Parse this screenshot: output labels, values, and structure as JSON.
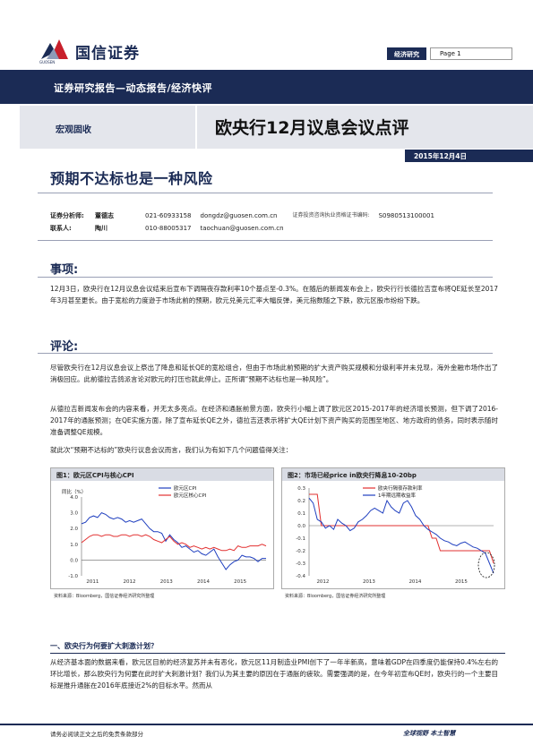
{
  "header": {
    "logo_name": "国信证券",
    "logo_sub": "GUOSEN",
    "category": "经济研究",
    "page": "Page 1",
    "banner": "证券研究报告—动态报告/经济快评",
    "section": "宏观固收",
    "report_title": "欧央行12月议息会议点评",
    "date": "2015年12月4日"
  },
  "main_title": "预期不达标也是一种风险",
  "authors": [
    {
      "role": "证券分析师:",
      "name": "董德志",
      "phone": "021-60933158",
      "email": "dongdz@guosen.com.cn",
      "license_label": "证券投资咨询执业资格证书编码:",
      "license": "S0980513100001"
    },
    {
      "role": "联系人:",
      "name": "陶川",
      "phone": "010-88005317",
      "email": "taochuan@guosen.com.cn",
      "license_label": "",
      "license": ""
    }
  ],
  "sections": {
    "events_heading": "事项:",
    "events_text": "12月3日，欧央行在12月议息会议结束后宣布下调隔夜存款利率10个基点至-0.3%。在随后的新闻发布会上，欧央行行长德拉吉宣布将QE延长至2017年3月甚至更长。由于宽松的力度逊于市场此前的预期，欧元兑美元汇率大幅反弹，美元指数随之下跌，欧元区股市纷纷下跌。",
    "comment_heading": "评论:",
    "comment_p1": "尽管欧央行在12月议息会议上祭出了降息和延长QE的宽松组合，但由于市场此前预期的扩大资产购买规模和分级利率并未兑现，海外金融市场作出了消极回应。此前德拉吉鸽派言论对欧元的打压也就此停止。正所谓“预期不达标也是一种风险”。",
    "comment_p2": "从德拉吉新闻发布会的内容来看，并无太多亮点。在经济和通胀前景方面，欧央行小幅上调了欧元区2015-2017年的经济增长预测，但下调了2016-2017年的通胀预测；在QE实施方面，除了宣布延长QE之外，德拉吉还表示将扩大QE计划下资产购买的范围至地区、地方政府的债务，同时表示随时准备调整QE规模。",
    "comment_p3": "就此次“预期不达标的”欧央行议息会议而言，我们认为有如下几个问题值得关注：",
    "sub1_heading": "一、欧央行为何要扩大刺激计划？",
    "sub1_text": "从经济基本面的数据来看，欧元区目前的经济复苏并未有恶化，欧元区11月制造业PMI创下了一年半新高，意味着GDP在四季度仍能保持0.4%左右的环比增长，那么欧央行为何要在此时扩大刺激计划？我们认为其主要的原因在于通胀的疲软。需要强调的是，在今年初宣布QE时，欧央行的一个主要目标是推升通胀在2016年底接近2%的目标水平。然而从"
  },
  "figure1": {
    "title": "图1：欧元区CPI与核心CPI",
    "source": "资料来源：Bloomberg，国信证券经济研究所整理",
    "chart_data": {
      "type": "line",
      "ylabel": "同比（%）",
      "ylim": [
        -1.0,
        4.0
      ],
      "yticks": [
        "4.0",
        "3.0",
        "2.0",
        "1.0",
        "0.0",
        "-1.0"
      ],
      "xticks": [
        "2011",
        "2012",
        "2013",
        "2014",
        "2015"
      ],
      "series": [
        {
          "name": "欧元区CPI",
          "color": "#1f3fbf",
          "values": [
            2.3,
            2.4,
            2.7,
            2.8,
            2.7,
            3.0,
            2.9,
            2.7,
            2.6,
            2.7,
            2.6,
            2.4,
            2.5,
            2.4,
            2.5,
            2.6,
            2.3,
            2.0,
            1.8,
            1.8,
            1.7,
            1.2,
            1.6,
            1.3,
            1.1,
            0.8,
            0.9,
            0.7,
            0.5,
            0.6,
            0.4,
            0.3,
            0.5,
            0.7,
            0.2,
            -0.2,
            -0.6,
            -0.3,
            -0.1,
            0.0,
            0.3,
            0.2,
            0.2,
            0.1,
            -0.1,
            0.1,
            0.1
          ]
        },
        {
          "name": "欧元区核心CPI",
          "color": "#e23030",
          "values": [
            1.1,
            1.3,
            1.5,
            1.6,
            1.6,
            1.5,
            1.6,
            1.6,
            1.5,
            1.5,
            1.6,
            1.6,
            1.5,
            1.6,
            1.6,
            1.5,
            1.6,
            1.5,
            1.3,
            1.2,
            1.1,
            1.3,
            1.5,
            1.2,
            1.0,
            1.1,
            1.0,
            0.8,
            0.9,
            0.8,
            0.7,
            0.8,
            0.7,
            0.8,
            0.7,
            0.6,
            0.6,
            0.7,
            0.6,
            0.9,
            0.8,
            0.8,
            0.9,
            0.9,
            0.9,
            1.0,
            0.9
          ]
        }
      ]
    }
  },
  "figure2": {
    "title": "图2：市场已经price in欧央行降息10-20bp",
    "source": "资料来源：Bloomberg，国信证券经济研究所整理",
    "chart_data": {
      "type": "line",
      "ylim": [
        -0.4,
        0.3
      ],
      "yticks": [
        "0.3",
        "0.2",
        "0.1",
        "0.0",
        "-0.1",
        "-0.2",
        "-0.3",
        "-0.4"
      ],
      "xticks": [
        "2012",
        "2013",
        "2014",
        "2015"
      ],
      "series": [
        {
          "name": "欧央行隔夜存款利率",
          "color": "#e23030",
          "values": [
            0.25,
            0.25,
            0.25,
            0.0,
            0.0,
            0.0,
            0.0,
            0.0,
            0.0,
            0.0,
            0.0,
            0.0,
            0.0,
            0.0,
            0.0,
            0.0,
            0.0,
            0.0,
            0.0,
            0.0,
            0.0,
            0.0,
            0.0,
            0.0,
            0.0,
            0.0,
            0.0,
            0.0,
            0.0,
            0.0,
            -0.1,
            -0.1,
            -0.2,
            -0.2,
            -0.2,
            -0.2,
            -0.2,
            -0.2,
            -0.2,
            -0.2,
            -0.2,
            -0.2,
            -0.2,
            -0.2,
            -0.2,
            -0.3
          ]
        },
        {
          "name": "1年期远期收益率",
          "color": "#1f3fbf",
          "values": [
            0.22,
            0.18,
            0.05,
            0.03,
            -0.02,
            0.0,
            -0.03,
            0.05,
            0.02,
            0.0,
            -0.04,
            -0.02,
            0.03,
            0.05,
            0.08,
            0.12,
            0.14,
            0.12,
            0.1,
            0.2,
            0.15,
            0.12,
            0.1,
            0.18,
            0.2,
            0.15,
            0.08,
            0.05,
            0.0,
            -0.03,
            -0.05,
            -0.07,
            -0.1,
            -0.12,
            -0.13,
            -0.15,
            -0.16,
            -0.14,
            -0.13,
            -0.15,
            -0.17,
            -0.18,
            -0.2,
            -0.22,
            -0.3,
            -0.38
          ]
        }
      ]
    }
  },
  "footer": {
    "disclaimer": "请务必阅读正文之后的免责条款部分",
    "slogan": "全球视野  本土智慧"
  }
}
